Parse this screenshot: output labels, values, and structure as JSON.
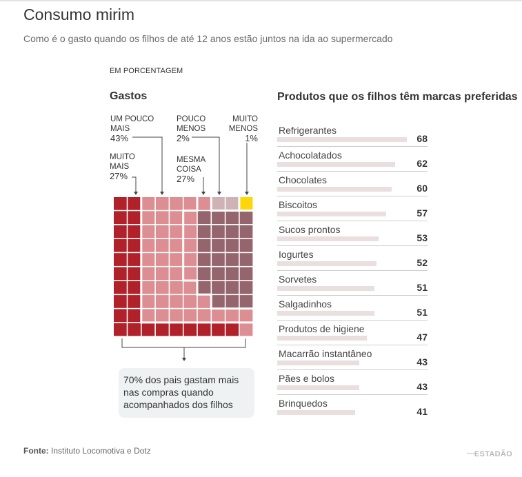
{
  "title": "Consumo mirim",
  "subtitle": "Como é o gasto quando os filhos de até 12 anos estão juntos na ida ao supermercado",
  "unit_label": "EM PORCENTAGEM",
  "left_title": "Gastos",
  "right_title": "Produtos que os filhos têm marcas preferidas",
  "callout": "70% dos pais gastam mais nas compras quando acompanhados dos filhos",
  "source_label": "Fonte:",
  "source_text": "Instituto Locomotiva e Dotz",
  "logo": "ESTADÃO",
  "colors": {
    "muito_mais": "#b0212a",
    "um_pouco_mais": "#dc8e92",
    "mesma_coisa": "#95656d",
    "pouco_menos": "#cfb2b6",
    "muito_menos": "#ffd60a",
    "bar": "#e9dfdf",
    "connector": "#444444"
  },
  "chart_data": [
    {
      "type": "waffle",
      "title": "Gastos",
      "categories": [
        {
          "key": "muito_mais",
          "label_l1": "MUITO",
          "label_l2": "MAIS",
          "pct": "27%",
          "value": 27
        },
        {
          "key": "um_pouco_mais",
          "label_l1": "UM POUCO",
          "label_l2": "MAIS",
          "pct": "43%",
          "value": 43
        },
        {
          "key": "mesma_coisa",
          "label_l1": "MESMA",
          "label_l2": "COISA",
          "pct": "27%",
          "value": 27
        },
        {
          "key": "pouco_menos",
          "label_l1": "POUCO",
          "label_l2": "MENOS",
          "pct": "2%",
          "value": 2
        },
        {
          "key": "muito_menos",
          "label_l1": "MUITO",
          "label_l2": "MENOS",
          "pct": "1%",
          "value": 1
        }
      ],
      "grid": "10x10"
    },
    {
      "type": "bar",
      "title": "Produtos que os filhos têm marcas preferidas",
      "orientation": "horizontal",
      "categories": [
        "Refrigerantes",
        "Achocolatados",
        "Chocolates",
        "Biscoitos",
        "Sucos prontos",
        "Iogurtes",
        "Sorvetes",
        "Salgadinhos",
        "Produtos de higiene",
        "Macarrão instantâneo",
        "Pães e bolos",
        "Brinquedos"
      ],
      "values": [
        68,
        62,
        60,
        57,
        53,
        52,
        51,
        51,
        47,
        43,
        43,
        41
      ]
    }
  ]
}
